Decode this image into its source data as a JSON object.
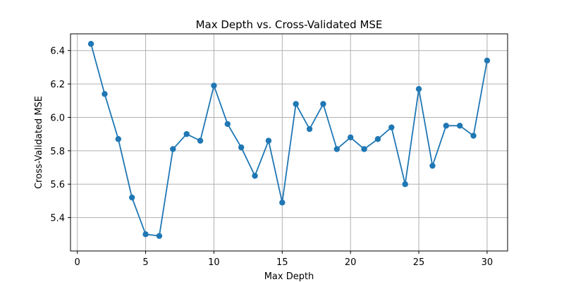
{
  "chart_data": {
    "type": "line",
    "title": "Max Depth vs. Cross-Validated MSE",
    "xlabel": "Max Depth",
    "ylabel": "Cross-Validated MSE",
    "xlim": [
      -0.5,
      31.5
    ],
    "ylim": [
      5.2,
      6.5
    ],
    "xticks": [
      0,
      5,
      10,
      15,
      20,
      25,
      30
    ],
    "yticks": [
      5.4,
      5.6,
      5.8,
      6.0,
      6.2,
      6.4
    ],
    "xtick_labels": [
      "0",
      "5",
      "10",
      "15",
      "20",
      "25",
      "30"
    ],
    "ytick_labels": [
      "5.4",
      "5.6",
      "5.8",
      "6.0",
      "6.2",
      "6.4"
    ],
    "grid": true,
    "color": "#1f77b4",
    "series": [
      {
        "x": [
          1,
          2,
          3,
          4,
          5,
          6,
          7,
          8,
          9,
          10,
          11,
          12,
          13,
          14,
          15,
          16,
          17,
          18,
          19,
          20,
          21,
          22,
          23,
          24,
          25,
          26,
          27,
          28,
          29,
          30
        ],
        "values": [
          6.44,
          6.14,
          5.87,
          5.52,
          5.3,
          5.29,
          5.81,
          5.9,
          5.86,
          6.19,
          5.96,
          5.82,
          5.65,
          5.86,
          5.49,
          6.08,
          5.93,
          6.08,
          5.81,
          5.88,
          5.81,
          5.87,
          5.94,
          5.6,
          6.17,
          5.71,
          5.95,
          5.95,
          5.89,
          6.34
        ]
      }
    ]
  }
}
